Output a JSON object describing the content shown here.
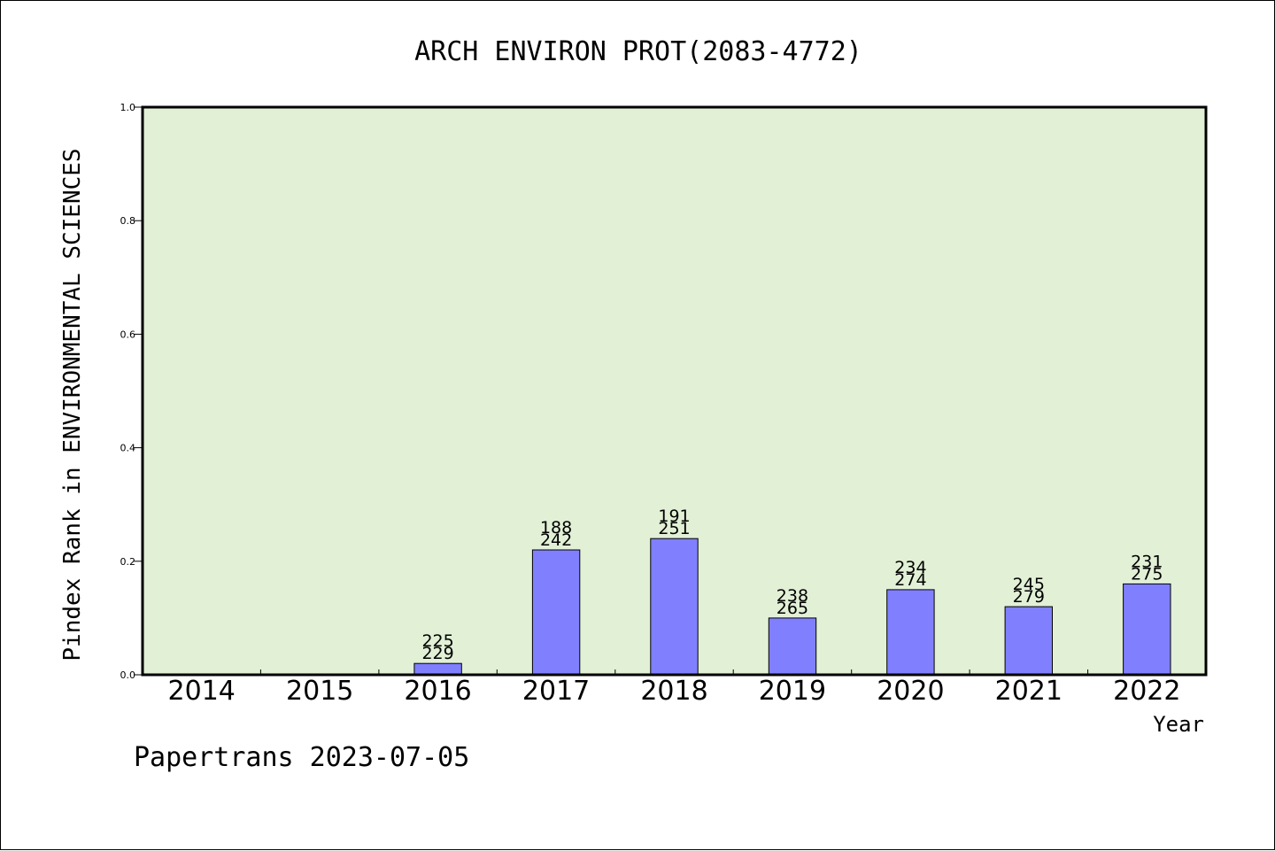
{
  "chart_data": {
    "type": "bar",
    "title": "ARCH ENVIRON PROT(2083-4772)",
    "xlabel": "Year",
    "ylabel": "Pindex Rank in ENVIRONMENTAL SCIENCES",
    "categories": [
      "2014",
      "2015",
      "2016",
      "2017",
      "2018",
      "2019",
      "2020",
      "2021",
      "2022"
    ],
    "values": [
      0,
      0,
      0.02,
      0.22,
      0.24,
      0.1,
      0.15,
      0.12,
      0.16
    ],
    "labels_top": [
      "",
      "",
      "225",
      "188",
      "191",
      "238",
      "234",
      "245",
      "231"
    ],
    "labels_bottom": [
      "",
      "",
      "229",
      "242",
      "251",
      "265",
      "274",
      "279",
      "275"
    ],
    "ylim": [
      0,
      1.0
    ],
    "yticks": [
      "0.0",
      "0.2",
      "0.4",
      "0.6",
      "0.8",
      "1.0"
    ],
    "grid": false,
    "bar_color": "#8080ff",
    "plot_background": "#e2f0d6"
  },
  "footer": {
    "text": "Papertrans 2023-07-05"
  }
}
